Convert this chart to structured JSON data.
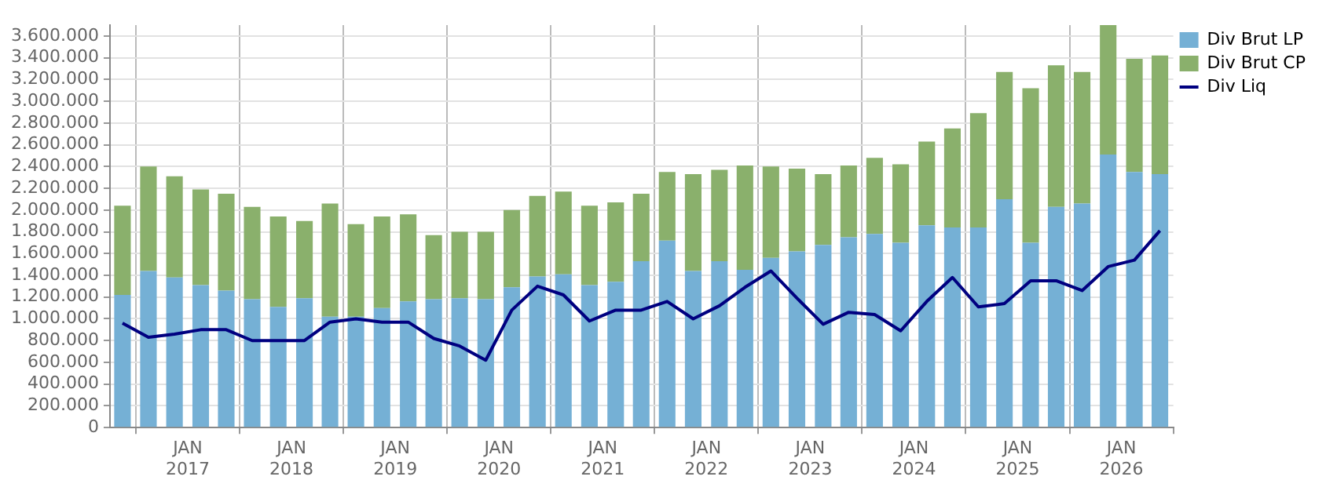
{
  "chart_data": {
    "type": "bar",
    "stacked": true,
    "grid": true,
    "legend": "top right",
    "x": [
      "2016-05-15",
      "2016-08-15",
      "2016-11-15",
      "2017-02-15",
      "2017-05-15",
      "2017-08-15",
      "2017-11-15",
      "2018-02-15",
      "2018-05-15",
      "2018-08-15",
      "2018-11-15",
      "2019-02-15",
      "2019-05-15",
      "2019-08-15",
      "2019-11-15",
      "2020-02-15",
      "2020-05-15",
      "2020-08-15",
      "2020-11-15",
      "2021-02-15",
      "2021-05-15",
      "2021-08-15",
      "2021-11-15",
      "2022-02-15",
      "2022-05-15",
      "2022-08-15",
      "2022-11-15",
      "2023-02-15",
      "2023-05-15",
      "2023-08-15",
      "2023-11-15",
      "2024-02-15",
      "2024-05-15",
      "2024-08-15",
      "2024-11-15",
      "2025-02-15",
      "2025-05-15",
      "2025-08-15",
      "2025-11-15",
      "2026-02-15",
      "2026-05-15"
    ],
    "xlim": [
      "2016-04-01",
      "2026-07-01"
    ],
    "xticks": [
      {
        "value": "2017-01-01",
        "label": "JAN 2017"
      },
      {
        "value": "2018-01-01",
        "label": "JAN 2018"
      },
      {
        "value": "2019-01-01",
        "label": "JAN 2019"
      },
      {
        "value": "2020-01-01",
        "label": "JAN 2020"
      },
      {
        "value": "2021-01-01",
        "label": "JAN 2021"
      },
      {
        "value": "2022-01-01",
        "label": "JAN 2022"
      },
      {
        "value": "2023-01-01",
        "label": "JAN 2023"
      },
      {
        "value": "2024-01-01",
        "label": "JAN 2024"
      },
      {
        "value": "2025-01-01",
        "label": "JAN 2025"
      },
      {
        "value": "2026-01-01",
        "label": "JAN 2026"
      }
    ],
    "ylim": [
      0,
      3700000
    ],
    "yticks": [
      {
        "value": 0,
        "label": "0"
      },
      {
        "value": 200000,
        "label": "200.000"
      },
      {
        "value": 400000,
        "label": "400.000"
      },
      {
        "value": 600000,
        "label": "600.000"
      },
      {
        "value": 800000,
        "label": "800.000"
      },
      {
        "value": 1000000,
        "label": "1.000.000"
      },
      {
        "value": 1200000,
        "label": "1.200.000"
      },
      {
        "value": 1400000,
        "label": "1.400.000"
      },
      {
        "value": 1600000,
        "label": "1.600.000"
      },
      {
        "value": 1800000,
        "label": "1.800.000"
      },
      {
        "value": 2000000,
        "label": "2.000.000"
      },
      {
        "value": 2200000,
        "label": "2.200.000"
      },
      {
        "value": 2400000,
        "label": "2.400.000"
      },
      {
        "value": 2600000,
        "label": "2.600.000"
      },
      {
        "value": 2800000,
        "label": "2.800.000"
      },
      {
        "value": 3000000,
        "label": "3.000.000"
      },
      {
        "value": 3200000,
        "label": "3.200.000"
      },
      {
        "value": 3400000,
        "label": "3.400.000"
      },
      {
        "value": 3600000,
        "label": "3.600.000"
      }
    ],
    "series": [
      {
        "name": "Div Brut LP",
        "color": "#75b0d5",
        "values": [
          1220000,
          1440000,
          1380000,
          1310000,
          1260000,
          1180000,
          1110000,
          1190000,
          1020000,
          1020000,
          1100000,
          1160000,
          1180000,
          1190000,
          1180000,
          1290000,
          1390000,
          1410000,
          1310000,
          1340000,
          1530000,
          1720000,
          1440000,
          1530000,
          1450000,
          1560000,
          1620000,
          1680000,
          1750000,
          1780000,
          1700000,
          1860000,
          1840000,
          1840000,
          2100000,
          1700000,
          2030000,
          2060000,
          2510000,
          2350000,
          2330000
        ]
      },
      {
        "name": "Div Brut CP",
        "color": "#8ab06c",
        "values": [
          820000,
          960000,
          930000,
          880000,
          890000,
          850000,
          830000,
          710000,
          1040000,
          850000,
          840000,
          800000,
          590000,
          610000,
          620000,
          710000,
          740000,
          760000,
          730000,
          730000,
          620000,
          630000,
          890000,
          840000,
          960000,
          840000,
          760000,
          650000,
          660000,
          700000,
          720000,
          770000,
          910000,
          1050000,
          1170000,
          1420000,
          1300000,
          1210000,
          1190000,
          1040000,
          1090000
        ]
      },
      {
        "name": "Div Liq",
        "type": "line",
        "color": "#000080",
        "values": [
          960000,
          830000,
          860000,
          900000,
          900000,
          800000,
          800000,
          800000,
          970000,
          1000000,
          970000,
          970000,
          820000,
          750000,
          620000,
          1080000,
          1300000,
          1220000,
          980000,
          1080000,
          1080000,
          1160000,
          1000000,
          1120000,
          1290000,
          1440000,
          1190000,
          950000,
          1060000,
          1040000,
          890000,
          1160000,
          1380000,
          1110000,
          1140000,
          1350000,
          1350000,
          1260000,
          1480000,
          1540000,
          1810000
        ]
      }
    ]
  }
}
